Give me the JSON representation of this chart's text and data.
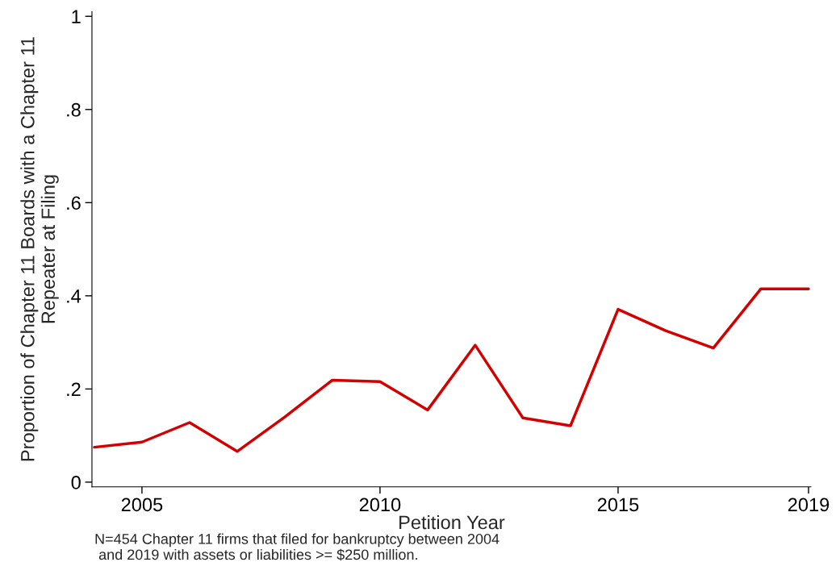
{
  "chart_data": {
    "type": "line",
    "xlabel": "Petition Year",
    "ylabel": "Proportion of Chapter 11 Boards with a Chapter 11\nRepeater at Filing",
    "x": [
      2004,
      2005,
      2006,
      2007,
      2008,
      2009,
      2010,
      2011,
      2012,
      2013,
      2014,
      2015,
      2016,
      2017,
      2018,
      2019
    ],
    "series": [
      {
        "color": "#d40000",
        "values": [
          0.075,
          0.086,
          0.128,
          0.066,
          0.14,
          0.219,
          0.216,
          0.155,
          0.294,
          0.138,
          0.121,
          0.371,
          0.325,
          0.288,
          0.415,
          0.415
        ]
      }
    ],
    "xlim": [
      2003.95,
      2019.05
    ],
    "xticks": [
      2005,
      2010,
      2015,
      2019
    ],
    "ylim": [
      -0.01,
      1.01
    ],
    "yticks": [
      0,
      {
        "value": 0.2,
        "label": ".2"
      },
      {
        "value": 0.4,
        "label": ".4"
      },
      {
        "value": 0.6,
        "label": ".6"
      },
      {
        "value": 0.8,
        "label": ".8"
      },
      1
    ],
    "grid": false,
    "marker": "none",
    "line_style": "solid",
    "annotations": [
      "N=454 Chapter 11 firms that filed for bankruptcy between 2004\n and 2019 with assets or liabilities >= $250 million."
    ]
  }
}
